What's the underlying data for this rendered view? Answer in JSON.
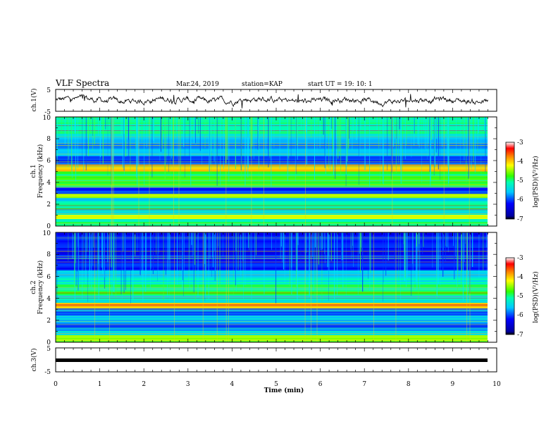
{
  "header": {
    "title": "VLF Spectra",
    "date": "Mar.24, 2019",
    "station": "station=KAP",
    "start": "start UT = 19: 10: 1"
  },
  "chart_data": [
    {
      "type": "line",
      "panel": "ch1-waveform",
      "ylabel": "ch.1(V)",
      "ylim": [
        -5,
        5
      ],
      "yticks": [
        "5",
        "-5"
      ],
      "xlim": [
        0,
        10
      ],
      "series": [
        {
          "color": "#000000"
        }
      ]
    },
    {
      "type": "heatmap",
      "panel": "ch1-spectrogram",
      "ylabel_line1": "ch.1",
      "ylabel_line2": "Frequency (kHz)",
      "ylim": [
        0,
        10
      ],
      "yticks": [
        "0",
        "2",
        "4",
        "6",
        "8",
        "10"
      ],
      "xlim": [
        0,
        9.8
      ],
      "colorbar": {
        "label": "log(PSD)(V²/Hz)",
        "range": [
          -7,
          -3
        ],
        "ticks": [
          "-3",
          "-4",
          "-5",
          "-6",
          "-7"
        ]
      }
    },
    {
      "type": "heatmap",
      "panel": "ch2-spectrogram",
      "ylabel_line1": "ch.2",
      "ylabel_line2": "Frequency (kHz)",
      "ylim": [
        0,
        10
      ],
      "yticks": [
        "0",
        "2",
        "4",
        "6",
        "8",
        "10"
      ],
      "xlim": [
        0,
        9.8
      ],
      "colorbar": {
        "label": "log(PSD)(V²/Hz)",
        "range": [
          -7,
          -3
        ],
        "ticks": [
          "-3",
          "-4",
          "-5",
          "-6",
          "-7"
        ]
      }
    },
    {
      "type": "line",
      "panel": "ch3-waveform",
      "ylabel": "ch.3(V)",
      "ylim": [
        -5,
        5
      ],
      "yticks": [
        "5",
        "-5"
      ],
      "xlim": [
        0,
        10
      ],
      "series": [
        {
          "color": "#000000",
          "level": 0
        }
      ]
    }
  ],
  "xaxis": {
    "label": "Time (min)",
    "range": [
      0,
      10
    ],
    "ticks": [
      "0",
      "1",
      "2",
      "3",
      "4",
      "5",
      "6",
      "7",
      "8",
      "9",
      "10"
    ]
  },
  "colors": {
    "background": "#ffffff",
    "axes": "#000000"
  }
}
